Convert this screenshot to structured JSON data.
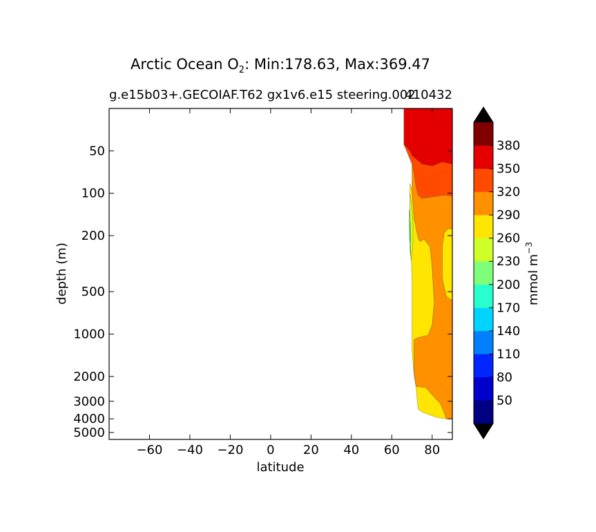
{
  "title": {
    "prefix": "Arctic Ocean O",
    "subscript": "2",
    "suffix": ": Min:178.63, Max:369.47"
  },
  "subtitle_left": "g.e15b03+.GECOIAF.T62 gx1v6.e15 steering.002",
  "subtitle_right": "410432",
  "chart_data": {
    "type": "contourf",
    "xlabel": "latitude",
    "ylabel": "depth (m)",
    "xlim": [
      -80,
      90
    ],
    "ylim": [
      5600,
      25
    ],
    "yscale": "log",
    "xticks": [
      -60,
      -40,
      -20,
      0,
      20,
      40,
      60,
      80
    ],
    "xtick_labels": [
      "−60",
      "−40",
      "−20",
      "0",
      "20",
      "40",
      "60",
      "80"
    ],
    "yticks": [
      50,
      100,
      200,
      500,
      1000,
      2000,
      3000,
      4000,
      5000
    ],
    "ytick_labels": [
      "50",
      "100",
      "200",
      "500",
      "1000",
      "2000",
      "3000",
      "4000",
      "5000"
    ],
    "field_min": 178.63,
    "field_max": 369.47,
    "data_extent_lat": [
      66,
      90
    ],
    "levels": [
      20,
      50,
      80,
      110,
      140,
      170,
      200,
      230,
      260,
      290,
      320,
      350,
      380,
      410
    ],
    "colorbar": {
      "label_main": "mmol m",
      "label_exp": "−3",
      "tick_values": [
        50,
        80,
        110,
        140,
        170,
        200,
        230,
        260,
        290,
        320,
        350,
        380
      ],
      "tick_labels": [
        "50",
        "80",
        "110",
        "140",
        "170",
        "200",
        "230",
        "260",
        "290",
        "320",
        "350",
        "380"
      ],
      "colors": [
        "#000080",
        "#0000cd",
        "#0026ff",
        "#0080ff",
        "#00d4ff",
        "#29ffce",
        "#7dff7a",
        "#ceff29",
        "#ffe600",
        "#ff9100",
        "#ff4a00",
        "#e40000",
        "#800000"
      ],
      "extend_under_color": "#000000",
      "extend_over_color": "#000000"
    },
    "regions": [
      {
        "level": "350-380",
        "color": "#e40000",
        "points": [
          [
            66,
            25
          ],
          [
            90,
            25
          ],
          [
            90,
            62
          ],
          [
            85,
            60
          ],
          [
            80,
            64
          ],
          [
            75,
            62
          ],
          [
            72,
            57
          ],
          [
            70,
            54
          ],
          [
            69,
            50
          ],
          [
            66,
            45
          ]
        ]
      },
      {
        "level": "320-350",
        "color": "#ff4a00",
        "points": [
          [
            66,
            45
          ],
          [
            69,
            50
          ],
          [
            70,
            54
          ],
          [
            72,
            57
          ],
          [
            75,
            62
          ],
          [
            80,
            64
          ],
          [
            85,
            60
          ],
          [
            90,
            62
          ],
          [
            90,
            105
          ],
          [
            86,
            103
          ],
          [
            82,
            105
          ],
          [
            78,
            107
          ],
          [
            75,
            109
          ],
          [
            73,
            103
          ],
          [
            72,
            90
          ],
          [
            71,
            72
          ],
          [
            70,
            62
          ]
        ]
      },
      {
        "level": "290-320",
        "color": "#ff9100",
        "points": [
          [
            70,
            62
          ],
          [
            71,
            72
          ],
          [
            72,
            90
          ],
          [
            73,
            103
          ],
          [
            75,
            109
          ],
          [
            78,
            107
          ],
          [
            82,
            105
          ],
          [
            86,
            103
          ],
          [
            90,
            105
          ],
          [
            90,
            180
          ],
          [
            88,
            178
          ],
          [
            86,
            190
          ],
          [
            85,
            240
          ],
          [
            85,
            400
          ],
          [
            87,
            540
          ],
          [
            90,
            580
          ],
          [
            90,
            4000
          ],
          [
            87,
            4010
          ],
          [
            86,
            3620
          ],
          [
            84,
            3100
          ],
          [
            82,
            2900
          ],
          [
            79,
            2600
          ],
          [
            77,
            2400
          ],
          [
            72,
            2350
          ],
          [
            71,
            1900
          ],
          [
            71,
            1300
          ],
          [
            71,
            1100
          ],
          [
            73,
            1060
          ],
          [
            78,
            1020
          ],
          [
            80,
            860
          ],
          [
            81,
            600
          ],
          [
            80,
            340
          ],
          [
            79,
            240
          ],
          [
            76,
            212
          ],
          [
            74,
            220
          ],
          [
            73,
            208
          ],
          [
            71,
            150
          ],
          [
            70,
            95
          ]
        ]
      },
      {
        "level": "260-290",
        "color": "#ffe600",
        "points": [
          [
            69,
            85
          ],
          [
            70,
            95
          ],
          [
            71,
            150
          ],
          [
            73,
            208
          ],
          [
            74,
            220
          ],
          [
            76,
            212
          ],
          [
            79,
            240
          ],
          [
            80,
            340
          ],
          [
            81,
            600
          ],
          [
            80,
            860
          ],
          [
            78,
            1020
          ],
          [
            73,
            1060
          ],
          [
            71,
            1100
          ],
          [
            71,
            1300
          ],
          [
            71,
            1900
          ],
          [
            72,
            2350
          ],
          [
            77,
            2400
          ],
          [
            79,
            2600
          ],
          [
            82,
            2900
          ],
          [
            84,
            3100
          ],
          [
            86,
            3620
          ],
          [
            87,
            4010
          ],
          [
            82,
            3900
          ],
          [
            75,
            3580
          ],
          [
            73,
            3400
          ],
          [
            72,
            2400
          ],
          [
            71,
            1950
          ],
          [
            70,
            1300
          ],
          [
            70,
            400
          ],
          [
            69.5,
            250
          ],
          [
            69,
            170
          ]
        ]
      },
      {
        "level": "260-290",
        "color": "#ffe600",
        "points": [
          [
            90,
            180
          ],
          [
            88,
            178
          ],
          [
            86,
            190
          ],
          [
            85,
            240
          ],
          [
            85,
            400
          ],
          [
            87,
            540
          ],
          [
            90,
            580
          ]
        ]
      },
      {
        "level": "230-260",
        "color": "#ceff29",
        "points": [
          [
            69,
            100
          ],
          [
            70,
            125
          ],
          [
            70.5,
            160
          ],
          [
            70.5,
            230
          ],
          [
            70,
            270
          ],
          [
            69.5,
            300
          ],
          [
            69.2,
            200
          ],
          [
            69,
            140
          ]
        ]
      },
      {
        "level": "200-230",
        "color": "#7dff7a",
        "points": [
          [
            68.6,
            130
          ],
          [
            69.2,
            160
          ],
          [
            69.4,
            230
          ],
          [
            69.2,
            280
          ],
          [
            68.9,
            240
          ],
          [
            68.7,
            170
          ]
        ]
      },
      {
        "level": "170-200",
        "color": "#29ffce",
        "points": [
          [
            68.7,
            155
          ],
          [
            69.1,
            175
          ],
          [
            69.1,
            220
          ],
          [
            68.8,
            210
          ]
        ]
      }
    ]
  }
}
